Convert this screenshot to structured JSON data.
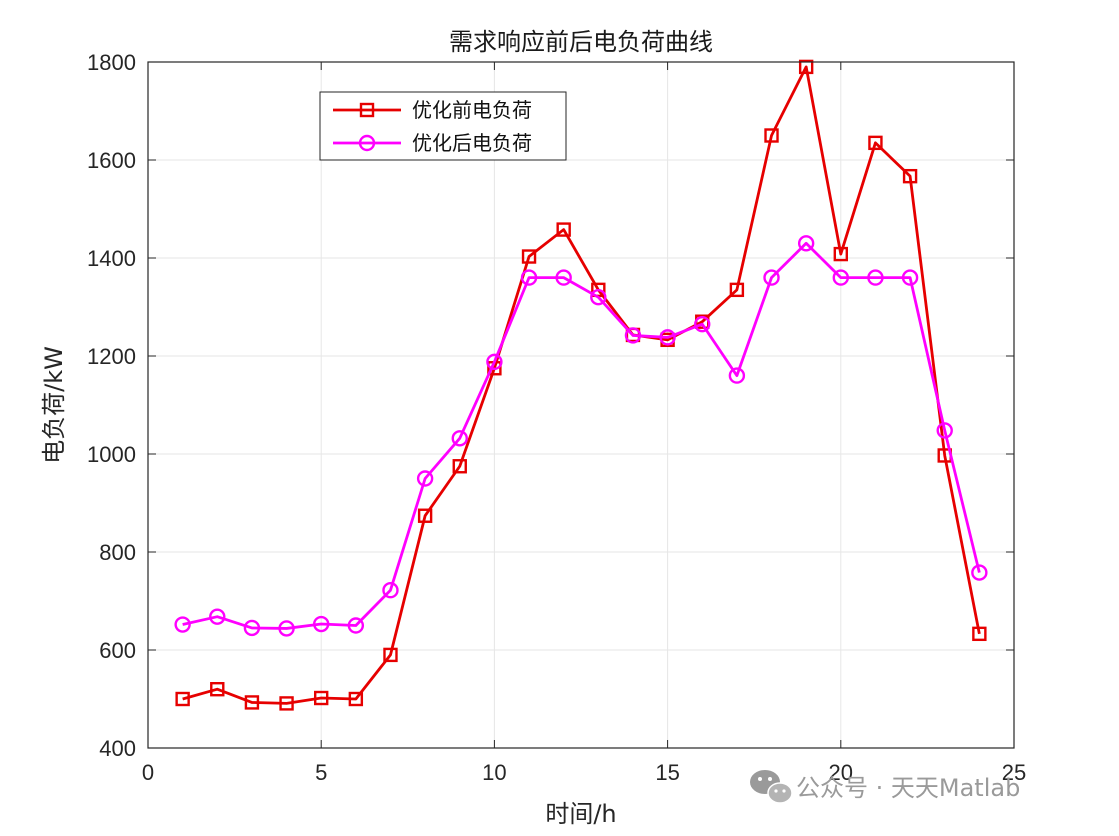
{
  "chart_data": {
    "type": "line",
    "title": "需求响应前后电负荷曲线",
    "xlabel": "时间/h",
    "ylabel": "电负荷/kW",
    "xlim": [
      0,
      25
    ],
    "ylim": [
      400,
      1800
    ],
    "xticks": [
      "0",
      "5",
      "10",
      "15",
      "20",
      "25"
    ],
    "yticks": [
      "400",
      "600",
      "800",
      "1000",
      "1200",
      "1400",
      "1600",
      "1800"
    ],
    "grid": true,
    "legend_position": "top-left",
    "x": [
      1,
      2,
      3,
      4,
      5,
      6,
      7,
      8,
      9,
      10,
      11,
      12,
      13,
      14,
      15,
      16,
      17,
      18,
      19,
      20,
      21,
      22,
      23,
      24
    ],
    "series": [
      {
        "name": "优化前电负荷",
        "color": "#e60000",
        "marker": "square",
        "values": [
          500,
          520,
          493,
          491,
          502,
          500,
          590,
          874,
          975,
          1175,
          1403,
          1458,
          1335,
          1243,
          1233,
          1270,
          1335,
          1650,
          1790,
          1408,
          1635,
          1567,
          997,
          633
        ]
      },
      {
        "name": "优化后电负荷",
        "color": "#ff00ff",
        "marker": "circle",
        "values": [
          652,
          668,
          645,
          644,
          653,
          650,
          722,
          950,
          1032,
          1188,
          1360,
          1360,
          1320,
          1242,
          1238,
          1265,
          1160,
          1360,
          1430,
          1360,
          1360,
          1360,
          1048,
          758
        ]
      }
    ]
  },
  "watermark": {
    "icon": "wechat-icon",
    "text": "公众号 · 天天Matlab"
  }
}
